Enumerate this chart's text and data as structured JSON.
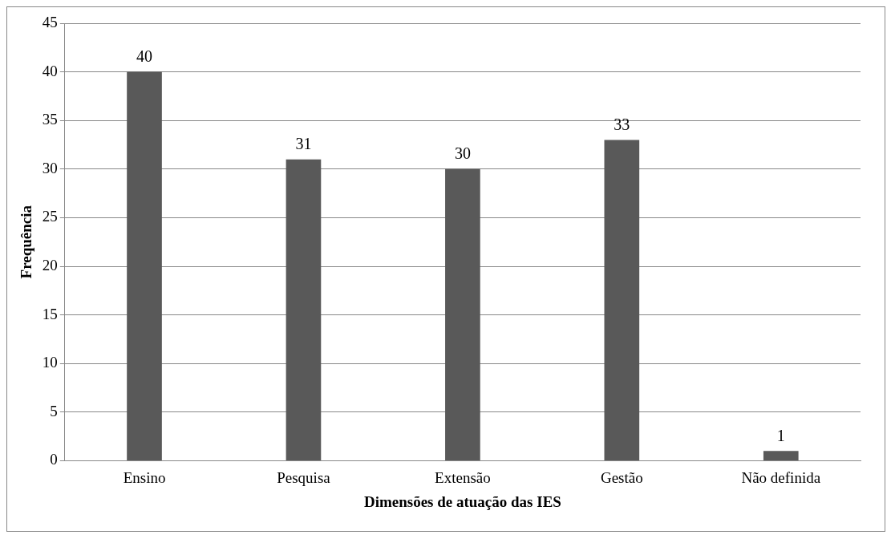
{
  "chart_data": {
    "type": "bar",
    "xlabel": "Dimensões de atuação das IES",
    "ylabel": "Frequência",
    "categories": [
      "Ensino",
      "Pesquisa",
      "Extensão",
      "Gestão",
      "Não definida"
    ],
    "values": [
      40,
      31,
      30,
      33,
      1
    ],
    "color": "#595959",
    "ylim": [
      0,
      45
    ],
    "yticks": [
      0,
      5,
      10,
      15,
      20,
      25,
      30,
      35,
      40,
      45
    ],
    "grid": "y",
    "data_labels": true
  }
}
